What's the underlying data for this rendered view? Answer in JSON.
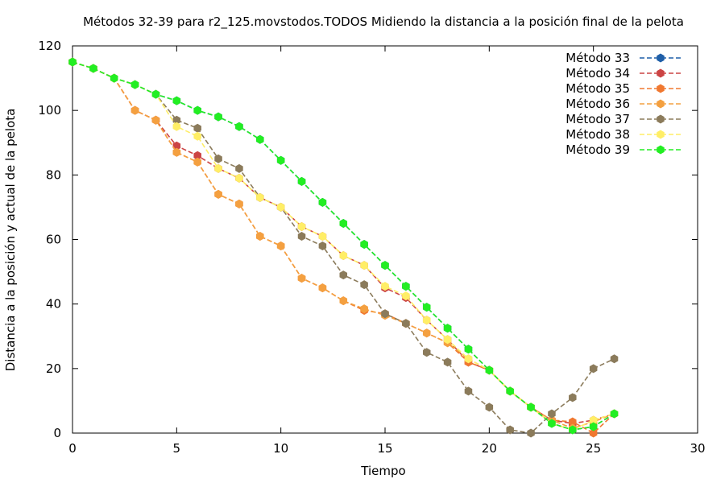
{
  "chart_data": {
    "type": "line",
    "title": "Métodos 32-39 para r2_125.movstodos.TODOS Midiendo la distancia a la posición final de la pelota",
    "xlabel": "Tiempo",
    "ylabel": "Distancia a la posición y actual de la pelota",
    "xlim": [
      0,
      30
    ],
    "ylim": [
      0,
      120
    ],
    "xticks": [
      "0",
      "5",
      "10",
      "15",
      "20",
      "25",
      "30"
    ],
    "yticks": [
      "0",
      "20",
      "40",
      "60",
      "80",
      "100",
      "120"
    ],
    "grid": false,
    "legend_position": "top-right",
    "series": [
      {
        "name": "Método 33",
        "color": "#1f5fa8",
        "x": [
          0,
          1,
          2,
          3,
          4,
          5,
          6,
          7,
          8,
          9,
          10,
          11,
          12,
          13,
          14,
          15,
          16,
          17,
          18,
          19,
          20,
          21,
          22,
          23,
          24,
          25,
          26
        ],
        "y": [
          115,
          113,
          110,
          108,
          105,
          103,
          100,
          98,
          95,
          91,
          84.5,
          78,
          71.5,
          65,
          58.5,
          52,
          45.5,
          39,
          32.5,
          26,
          19.5,
          13,
          8,
          3,
          1,
          2,
          6
        ]
      },
      {
        "name": "Método 34",
        "color": "#cc4444",
        "x": [
          0,
          1,
          2,
          3,
          4,
          5,
          6,
          7,
          8,
          9,
          10,
          11,
          12,
          13,
          14,
          15,
          16,
          17,
          18,
          19,
          20,
          21,
          22,
          23,
          24,
          25,
          26
        ],
        "y": [
          115,
          113,
          110,
          100,
          97,
          89,
          86,
          82,
          79,
          73,
          70,
          64,
          61,
          55,
          52,
          45,
          42,
          35,
          29,
          22,
          19.5,
          13,
          8,
          4,
          3,
          4,
          6
        ]
      },
      {
        "name": "Método 35",
        "color": "#f07830",
        "x": [
          0,
          1,
          2,
          3,
          4,
          5,
          6,
          7,
          8,
          9,
          10,
          11,
          12,
          13,
          14,
          15,
          16,
          17,
          18,
          19,
          20,
          21,
          22,
          23,
          24,
          25,
          26
        ],
        "y": [
          115,
          113,
          110,
          100,
          97,
          87,
          84,
          74,
          71,
          61,
          58,
          48,
          45,
          41,
          38,
          37,
          34,
          31,
          28,
          22,
          19.5,
          13,
          8,
          4,
          3.5,
          0,
          6
        ]
      },
      {
        "name": "Método 36",
        "color": "#f4a040",
        "x": [
          0,
          1,
          2,
          3,
          4,
          5,
          6,
          7,
          8,
          9,
          10,
          11,
          12,
          13,
          14,
          15,
          16,
          17,
          18,
          19,
          20,
          21,
          22,
          23,
          24,
          25,
          26
        ],
        "y": [
          115,
          113,
          110,
          100,
          97,
          87,
          84,
          74,
          71,
          61,
          58,
          48,
          45,
          41,
          38.5,
          36.5,
          34,
          31,
          28,
          23,
          19.5,
          13,
          8,
          4,
          1.5,
          3.5,
          6
        ]
      },
      {
        "name": "Método 37",
        "color": "#8b7b5b",
        "x": [
          0,
          1,
          2,
          3,
          4,
          5,
          6,
          7,
          8,
          9,
          10,
          11,
          12,
          13,
          14,
          15,
          16,
          17,
          18,
          19,
          20,
          21,
          22,
          23,
          24,
          25,
          26
        ],
        "y": [
          115,
          113,
          110,
          108,
          105,
          97,
          94.5,
          85,
          82,
          73,
          70,
          61,
          58,
          49,
          46,
          37,
          34,
          25,
          22,
          13,
          8,
          1,
          0,
          6,
          11,
          20,
          23
        ]
      },
      {
        "name": "Método 38",
        "color": "#ffee66",
        "x": [
          0,
          1,
          2,
          3,
          4,
          5,
          6,
          7,
          8,
          9,
          10,
          11,
          12,
          13,
          14,
          15,
          16,
          17,
          18,
          19,
          20,
          21,
          22,
          23,
          24,
          25,
          26
        ],
        "y": [
          115,
          113,
          110,
          108,
          105,
          95,
          92,
          82,
          79,
          73,
          70,
          64,
          61,
          55,
          52,
          45.5,
          42.5,
          35,
          29,
          23,
          19.5,
          13,
          8,
          3,
          1,
          4,
          6
        ]
      },
      {
        "name": "Método 39",
        "color": "#22ee22",
        "x": [
          0,
          1,
          2,
          3,
          4,
          5,
          6,
          7,
          8,
          9,
          10,
          11,
          12,
          13,
          14,
          15,
          16,
          17,
          18,
          19,
          20,
          21,
          22,
          23,
          24,
          25,
          26
        ],
        "y": [
          115,
          113,
          110,
          108,
          105,
          103,
          100,
          98,
          95,
          91,
          84.5,
          78,
          71.5,
          65,
          58.5,
          52,
          45.5,
          39,
          32.5,
          26,
          19.5,
          13,
          8,
          3,
          1,
          2,
          6
        ]
      }
    ]
  }
}
